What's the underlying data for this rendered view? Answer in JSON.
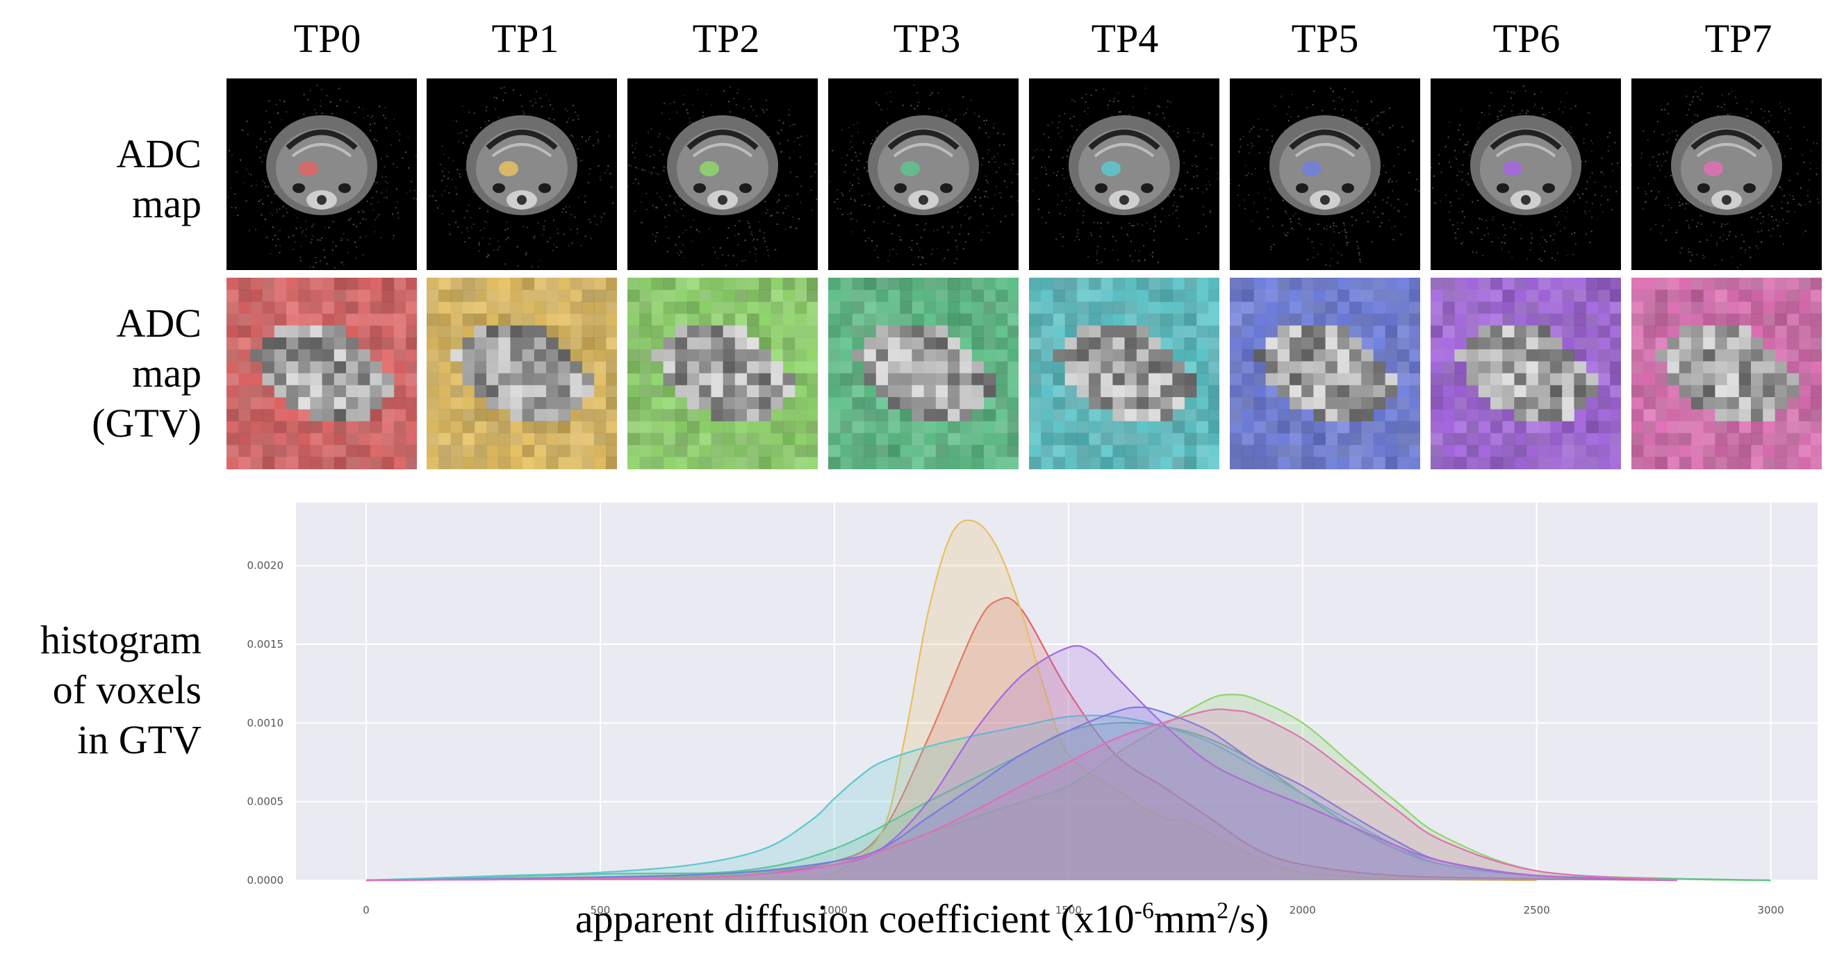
{
  "timepoints": [
    "TP0",
    "TP1",
    "TP2",
    "TP3",
    "TP4",
    "TP5",
    "TP6",
    "TP7"
  ],
  "row_labels": {
    "adc_map": [
      "ADC",
      "map"
    ],
    "adc_map_gtv": [
      "ADC",
      "map",
      "(GTV)"
    ],
    "histogram": [
      "histogram",
      "of voxels",
      "in GTV"
    ]
  },
  "colors": {
    "TP0": "#e06464",
    "TP1": "#e6c060",
    "TP2": "#8fd66a",
    "TP3": "#5ec38a",
    "TP4": "#5cc8cc",
    "TP5": "#6f7fe0",
    "TP6": "#a567e0",
    "TP7": "#e070b5"
  },
  "x_axis": {
    "label_main": "apparent diffusion coefficient (x10",
    "label_exp1": "-6",
    "label_mid": "mm",
    "label_exp2": "2",
    "label_end": "/s)"
  },
  "chart_data": {
    "type": "area",
    "title": "",
    "xlabel": "apparent diffusion coefficient (x10-6mm2/s)",
    "ylabel": "",
    "xlim": [
      -150,
      3100
    ],
    "ylim": [
      0,
      0.0024
    ],
    "xticks": [
      0,
      500,
      1000,
      1500,
      2000,
      2500,
      3000
    ],
    "xtick_labels": [
      "0",
      "500",
      "1000",
      "1500",
      "2000",
      "2500",
      "3000"
    ],
    "yticks": [
      0,
      0.0005,
      0.001,
      0.0015,
      0.002
    ],
    "ytick_labels": [
      "0.0000",
      "0.0005",
      "0.0010",
      "0.0015",
      "0.0020"
    ],
    "grid": true,
    "series": [
      {
        "name": "TP0",
        "color": "#e06464",
        "x": [
          0,
          500,
          800,
          1000,
          1100,
          1200,
          1300,
          1350,
          1400,
          1500,
          1600,
          1700,
          1750,
          1800,
          1900,
          2000,
          2200,
          2500,
          2800
        ],
        "y": [
          0,
          2e-05,
          4e-05,
          0.00012,
          0.0003,
          0.0009,
          0.0016,
          0.00178,
          0.00172,
          0.0012,
          0.0008,
          0.0006,
          0.0005,
          0.0004,
          0.0002,
          0.0001,
          3e-05,
          1e-05,
          0
        ]
      },
      {
        "name": "TP1",
        "color": "#e6c060",
        "x": [
          0,
          500,
          900,
          1000,
          1100,
          1150,
          1200,
          1250,
          1300,
          1350,
          1400,
          1450,
          1500,
          1600,
          1700,
          1750,
          1800,
          1900,
          2000,
          2200,
          2500
        ],
        "y": [
          0,
          1e-05,
          2e-05,
          5e-05,
          0.0003,
          0.0009,
          0.0017,
          0.0022,
          0.00228,
          0.0021,
          0.0017,
          0.0012,
          0.0008,
          0.00058,
          0.0004,
          0.00038,
          0.0003,
          0.00015,
          5e-05,
          1e-05,
          0
        ]
      },
      {
        "name": "TP2",
        "color": "#8fd66a",
        "x": [
          0,
          500,
          800,
          1000,
          1200,
          1400,
          1500,
          1600,
          1700,
          1800,
          1850,
          1900,
          2000,
          2100,
          2200,
          2300,
          2500,
          2800,
          3000
        ],
        "y": [
          0,
          2e-05,
          4e-05,
          0.0001,
          0.0003,
          0.0005,
          0.0006,
          0.0008,
          0.00098,
          0.00115,
          0.00118,
          0.00115,
          0.001,
          0.00075,
          0.0005,
          0.00028,
          6e-05,
          1e-05,
          0
        ]
      },
      {
        "name": "TP3",
        "color": "#5ec38a",
        "x": [
          0,
          500,
          800,
          1000,
          1200,
          1400,
          1500,
          1600,
          1700,
          1800,
          1900,
          2000,
          2100,
          2200,
          2300,
          2500,
          2800,
          3000
        ],
        "y": [
          0,
          4e-05,
          6e-05,
          0.0002,
          0.0005,
          0.0008,
          0.00095,
          0.001,
          0.00098,
          0.0009,
          0.00075,
          0.00055,
          0.00035,
          0.0002,
          0.0001,
          3e-05,
          1e-05,
          0
        ]
      },
      {
        "name": "TP4",
        "color": "#5cc8cc",
        "x": [
          0,
          300,
          500,
          700,
          850,
          950,
          1000,
          1050,
          1100,
          1200,
          1300,
          1400,
          1500,
          1600,
          1700,
          1800,
          1900,
          2000,
          2100,
          2200,
          2300,
          2500,
          2800
        ],
        "y": [
          0,
          3e-05,
          5e-05,
          0.0001,
          0.0002,
          0.00038,
          0.00052,
          0.00065,
          0.00075,
          0.00085,
          0.00092,
          0.00098,
          0.00104,
          0.00104,
          0.00098,
          0.00088,
          0.00072,
          0.00055,
          0.00038,
          0.00022,
          0.0001,
          3e-05,
          0
        ]
      },
      {
        "name": "TP5",
        "color": "#6f7fe0",
        "x": [
          0,
          500,
          800,
          1000,
          1100,
          1200,
          1300,
          1400,
          1500,
          1600,
          1650,
          1700,
          1800,
          1900,
          2000,
          2100,
          2200,
          2300,
          2500,
          2800
        ],
        "y": [
          0,
          2e-05,
          5e-05,
          0.00012,
          0.0002,
          0.0004,
          0.0006,
          0.0008,
          0.00095,
          0.00107,
          0.0011,
          0.00107,
          0.00095,
          0.00075,
          0.0006,
          0.00042,
          0.00025,
          0.00012,
          3e-05,
          0
        ]
      },
      {
        "name": "TP6",
        "color": "#a567e0",
        "x": [
          0,
          500,
          800,
          1000,
          1100,
          1200,
          1300,
          1400,
          1500,
          1550,
          1600,
          1700,
          1800,
          1900,
          2000,
          2100,
          2200,
          2300,
          2500,
          2800
        ],
        "y": [
          0,
          1e-05,
          3e-05,
          0.0001,
          0.0002,
          0.0005,
          0.00095,
          0.0013,
          0.00148,
          0.00145,
          0.0013,
          0.001,
          0.00075,
          0.0006,
          0.00048,
          0.00035,
          0.00022,
          0.00012,
          3e-05,
          0
        ]
      },
      {
        "name": "TP7",
        "color": "#e070b5",
        "x": [
          0,
          500,
          800,
          1000,
          1200,
          1400,
          1500,
          1600,
          1700,
          1800,
          1850,
          1900,
          2000,
          2100,
          2200,
          2300,
          2500,
          2800
        ],
        "y": [
          0,
          1e-05,
          3e-05,
          0.0001,
          0.0003,
          0.0006,
          0.00075,
          0.0009,
          0.001,
          0.00108,
          0.00108,
          0.00105,
          0.0009,
          0.00068,
          0.00045,
          0.00025,
          6e-05,
          0
        ]
      }
    ]
  }
}
